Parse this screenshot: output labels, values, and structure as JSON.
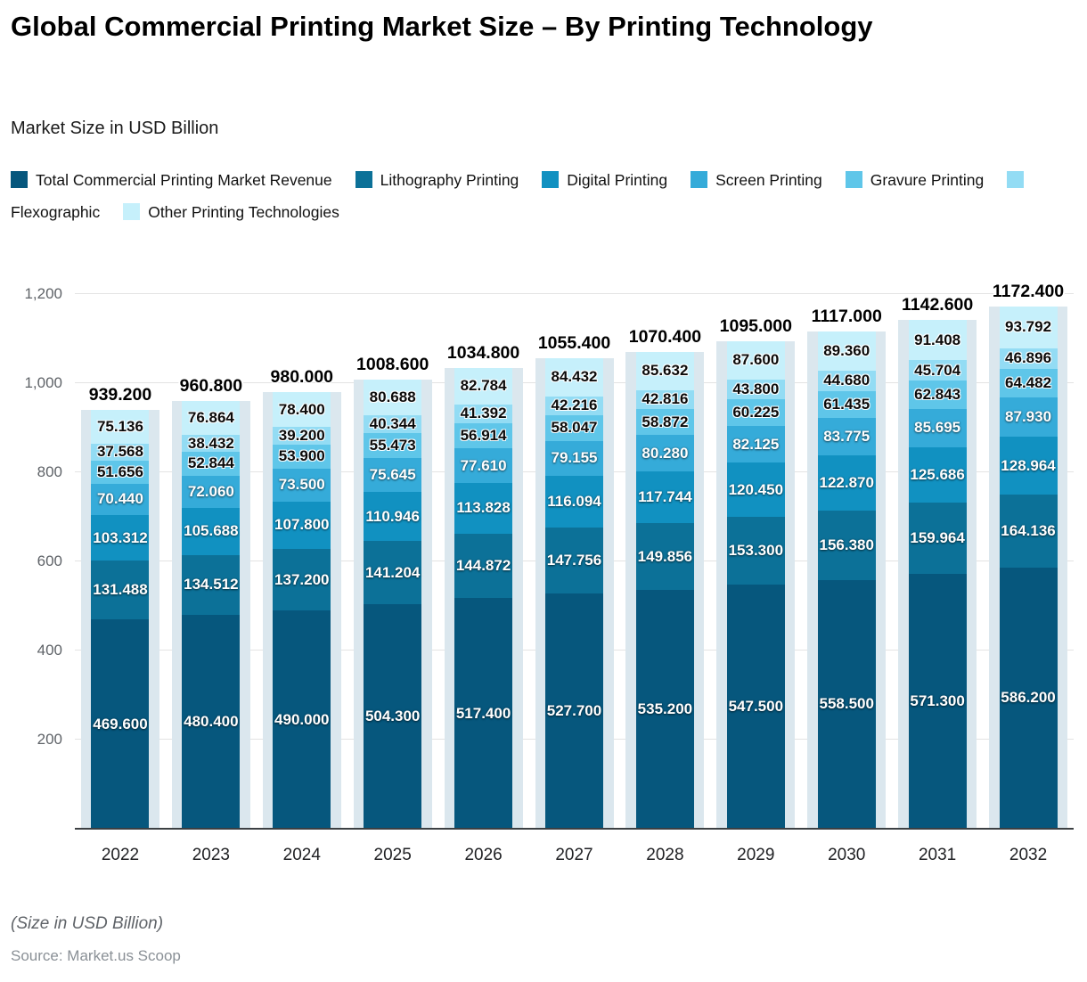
{
  "header": {
    "title": "Global Commercial Printing Market Size – By Printing Technology",
    "subtitle": "Market Size in USD Billion"
  },
  "legend": [
    {
      "label": "Total Commercial Printing Market Revenue",
      "color": "#06577d"
    },
    {
      "label": "Lithography Printing",
      "color": "#0c7198"
    },
    {
      "label": "Digital Printing",
      "color": "#1191c1"
    },
    {
      "label": "Screen Printing",
      "color": "#35abd9"
    },
    {
      "label": "Gravure Printing",
      "color": "#5fc6e9"
    },
    {
      "label": "Flexographic",
      "color": "#93dcf4"
    },
    {
      "label": "Other Printing Technologies",
      "color": "#c6f0fb"
    }
  ],
  "chart_data": {
    "type": "bar",
    "stacked": true,
    "title": "Global Commercial Printing Market Size – By Printing Technology",
    "unit": "USD Billion",
    "value_format": "0.000",
    "categories": [
      "2022",
      "2023",
      "2024",
      "2025",
      "2026",
      "2027",
      "2028",
      "2029",
      "2030",
      "2031",
      "2032"
    ],
    "series": [
      {
        "name": "Total Commercial Printing Market Revenue",
        "color": "#06577d",
        "label_style": "light",
        "values": [
          469.6,
          480.4,
          490.0,
          504.3,
          517.4,
          527.7,
          535.2,
          547.5,
          558.5,
          571.3,
          586.2
        ]
      },
      {
        "name": "Lithography Printing",
        "color": "#0c7198",
        "label_style": "light",
        "values": [
          131.488,
          134.512,
          137.2,
          141.204,
          144.872,
          147.756,
          149.856,
          153.3,
          156.38,
          159.964,
          164.136
        ]
      },
      {
        "name": "Digital Printing",
        "color": "#1191c1",
        "label_style": "light",
        "values": [
          103.312,
          105.688,
          107.8,
          110.946,
          113.828,
          116.094,
          117.744,
          120.45,
          122.87,
          125.686,
          128.964
        ]
      },
      {
        "name": "Screen Printing",
        "color": "#35abd9",
        "label_style": "light",
        "values": [
          70.44,
          72.06,
          73.5,
          75.645,
          77.61,
          79.155,
          80.28,
          82.125,
          83.775,
          85.695,
          87.93
        ]
      },
      {
        "name": "Gravure Printing",
        "color": "#5fc6e9",
        "label_style": "dark",
        "values": [
          51.656,
          52.844,
          53.9,
          55.473,
          56.914,
          58.047,
          58.872,
          60.225,
          61.435,
          62.843,
          64.482
        ]
      },
      {
        "name": "Flexographic",
        "color": "#93dcf4",
        "label_style": "dark",
        "values": [
          37.568,
          38.432,
          39.2,
          40.344,
          41.392,
          42.216,
          42.816,
          43.8,
          44.68,
          45.704,
          46.896
        ]
      },
      {
        "name": "Other Printing Technologies",
        "color": "#c6f0fb",
        "label_style": "dark",
        "values": [
          75.136,
          76.864,
          78.4,
          80.688,
          82.784,
          84.432,
          85.632,
          87.6,
          89.36,
          91.408,
          93.792
        ]
      }
    ],
    "totals": [
      939.2,
      960.8,
      980.0,
      1008.6,
      1034.8,
      1055.4,
      1070.4,
      1095.0,
      1117.0,
      1142.6,
      1172.4
    ],
    "xlabel": "",
    "ylabel": "",
    "ylim": [
      0,
      1200
    ],
    "yticks": [
      200,
      400,
      600,
      800,
      1000,
      1200
    ],
    "grid": true,
    "legend_position": "top",
    "backdrop_color": "#dbe7ee"
  },
  "footer": {
    "note": "(Size in USD Billion)",
    "source": "Source: Market.us Scoop"
  }
}
